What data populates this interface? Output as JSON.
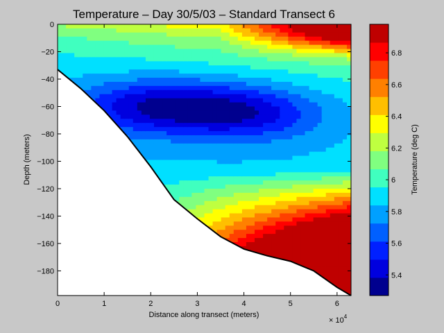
{
  "chart_data": {
    "type": "heatmap",
    "title": "Temperature – Day 30/5/03 – Standard Transect 6",
    "xlabel": "Distance along transect (meters)",
    "ylabel": "Depth (meters)",
    "x_multiplier_label": "× 10",
    "x_multiplier_exp": "4",
    "xlim": [
      0,
      63000
    ],
    "ylim": [
      -198,
      0
    ],
    "xticks": [
      0,
      10000,
      20000,
      30000,
      40000,
      50000,
      60000
    ],
    "xtick_labels": [
      "0",
      "1",
      "2",
      "3",
      "4",
      "5",
      "6"
    ],
    "yticks": [
      0,
      -20,
      -40,
      -60,
      -80,
      -100,
      -120,
      -140,
      -160,
      -180
    ],
    "ytick_labels": [
      "0",
      "−20",
      "−40",
      "−60",
      "−80",
      "−100",
      "−120",
      "−140",
      "−160",
      "−180"
    ],
    "colorbar": {
      "label": "Temperature (deg C)",
      "range": [
        5.27,
        6.98
      ],
      "ticks": [
        5.4,
        5.6,
        5.8,
        6.0,
        6.2,
        6.4,
        6.6,
        6.8
      ],
      "tick_labels": [
        "5.4",
        "5.6",
        "5.8",
        "6",
        "6.2",
        "6.4",
        "6.6",
        "6.8"
      ]
    },
    "bottom_profile": {
      "x": [
        0,
        5000,
        10000,
        15000,
        20000,
        25000,
        30000,
        35000,
        40000,
        45000,
        50000,
        55000,
        60000,
        63000
      ],
      "depth": [
        -33,
        -47,
        -63,
        -82,
        -104,
        -128,
        -142,
        -155,
        -164,
        -169,
        -173,
        -180,
        -192,
        -198
      ]
    },
    "grid": false,
    "legend": "colorbar-right"
  },
  "colors": {
    "jet": [
      "#00008f",
      "#0000df",
      "#0020ff",
      "#0060ff",
      "#00a0ff",
      "#00e0ff",
      "#40ffbf",
      "#80ff80",
      "#bfff40",
      "#ffff00",
      "#ffbf00",
      "#ff8000",
      "#ff4000",
      "#ff0000",
      "#bf0000"
    ]
  }
}
